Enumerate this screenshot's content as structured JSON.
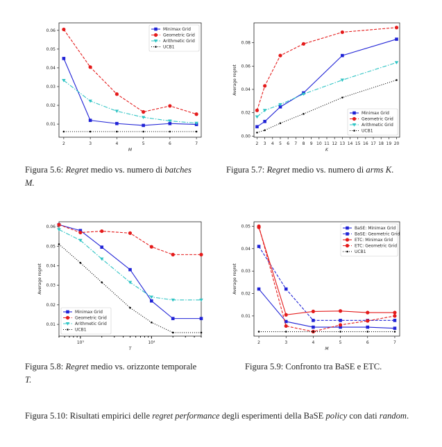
{
  "colors": {
    "minimax": "#1f22d6",
    "geometric": "#e41a1a",
    "arithmetic": "#2ec4c4",
    "ucb1": "#000000"
  },
  "chart_data": [
    {
      "type": "line",
      "xlabel": "M",
      "ylabel": "",
      "x": [
        2,
        3,
        4,
        5,
        6,
        7
      ],
      "xticks": [
        "2",
        "3",
        "4",
        "5",
        "6",
        "7"
      ],
      "yticks": [
        "0.01",
        "0.02",
        "0.03",
        "0.04",
        "0.05",
        "0.06"
      ],
      "ylim": [
        0.003,
        0.064
      ],
      "xlim": [
        1.82,
        7.18
      ],
      "legend_position": "top-right",
      "series": [
        {
          "name": "Minimax Grid",
          "style": "minimax",
          "values": [
            0.045,
            0.012,
            0.0103,
            0.0093,
            0.0103,
            0.0098
          ]
        },
        {
          "name": "Geometric Grid",
          "style": "geometric",
          "values": [
            0.0605,
            0.0404,
            0.026,
            0.0165,
            0.0197,
            0.0153
          ]
        },
        {
          "name": "Arithmetic Grid",
          "style": "arithmetic",
          "values": [
            0.0333,
            0.0223,
            0.0169,
            0.0136,
            0.0117,
            0.0105
          ]
        },
        {
          "name": "UCB1",
          "style": "ucb1",
          "values": [
            0.006,
            0.006,
            0.006,
            0.006,
            0.006,
            0.006
          ]
        }
      ]
    },
    {
      "type": "line",
      "xlabel": "K",
      "ylabel": "Average regret",
      "x": [
        2,
        3,
        5,
        8,
        13,
        20
      ],
      "xticks": [
        "2",
        "3",
        "4",
        "5",
        "6",
        "7",
        "8",
        "9",
        "10",
        "11",
        "12",
        "13",
        "14",
        "15",
        "16",
        "17",
        "18",
        "19",
        "20"
      ],
      "xtick_values": [
        2,
        3,
        4,
        5,
        6,
        7,
        8,
        9,
        10,
        11,
        12,
        13,
        14,
        15,
        16,
        17,
        18,
        19,
        20
      ],
      "yticks": [
        "0.00",
        "0.02",
        "0.04",
        "0.06",
        "0.08"
      ],
      "ytick_values": [
        0,
        0.02,
        0.04,
        0.06,
        0.08
      ],
      "ylim": [
        -0.001,
        0.097
      ],
      "xlim": [
        1.6,
        20.4
      ],
      "legend_position": "lower-right",
      "series": [
        {
          "name": "Minimax Grid",
          "style": "minimax",
          "values": [
            0.008,
            0.0125,
            0.025,
            0.037,
            0.069,
            0.083
          ]
        },
        {
          "name": "Geometric Grid",
          "style": "geometric",
          "values": [
            0.022,
            0.043,
            0.069,
            0.079,
            0.089,
            0.093
          ]
        },
        {
          "name": "Arithmetic Grid",
          "style": "arithmetic",
          "values": [
            0.0165,
            0.022,
            0.027,
            0.036,
            0.048,
            0.063
          ]
        },
        {
          "name": "UCB1",
          "style": "ucb1",
          "values": [
            0.003,
            0.005,
            0.011,
            0.019,
            0.033,
            0.048
          ]
        }
      ]
    },
    {
      "type": "line",
      "xscale": "log",
      "xlabel": "T",
      "ylabel": "Average regret",
      "x": [
        5000,
        10000,
        20000,
        50000,
        100000,
        200000,
        500000
      ],
      "xticks": [
        "10³",
        "10⁴"
      ],
      "ylim": [
        0.004,
        0.0625
      ],
      "xlim": [
        5000,
        500000
      ],
      "yticks": [
        "0.01",
        "0.02",
        "0.03",
        "0.04",
        "0.05",
        "0.06"
      ],
      "legend_position": "lower-left",
      "series": [
        {
          "name": "Minimax Grid",
          "style": "minimax",
          "values": [
            0.061,
            0.058,
            0.0495,
            0.038,
            0.022,
            0.013,
            0.013
          ]
        },
        {
          "name": "Geometric Grid",
          "style": "geometric",
          "values": [
            0.061,
            0.057,
            0.0577,
            0.0567,
            0.0497,
            0.0457,
            0.0457
          ]
        },
        {
          "name": "Arithmetic Grid",
          "style": "arithmetic",
          "values": [
            0.0585,
            0.053,
            0.0435,
            0.0315,
            0.024,
            0.0225,
            0.0225
          ]
        },
        {
          "name": "UCB1",
          "style": "ucb1",
          "values": [
            0.051,
            0.0415,
            0.0315,
            0.0185,
            0.011,
            0.0058,
            0.0058
          ]
        }
      ]
    },
    {
      "type": "line",
      "xlabel": "M",
      "ylabel": "Average regret",
      "x": [
        2,
        3,
        4,
        5,
        6,
        7
      ],
      "xticks": [
        "2",
        "3",
        "4",
        "5",
        "6",
        "7"
      ],
      "yticks": [
        "0.01",
        "0.02",
        "0.03",
        "0.04",
        "0.05"
      ],
      "ylim": [
        0.001,
        0.052
      ],
      "xlim": [
        1.82,
        7.18
      ],
      "legend_position": "top-right",
      "series": [
        {
          "name": "BaSE: Minimax Grid",
          "style": "minimax",
          "values": [
            0.022,
            0.0075,
            0.005,
            0.005,
            0.005,
            0.0045
          ]
        },
        {
          "name": "BaSE: Geometric Grid",
          "style": "minimax-dashed",
          "values": [
            0.041,
            0.022,
            0.008,
            0.008,
            0.008,
            0.008
          ]
        },
        {
          "name": "ETC: Minimax Grid",
          "style": "geometric-solid",
          "values": [
            0.0495,
            0.0105,
            0.012,
            0.0122,
            0.0115,
            0.0115
          ]
        },
        {
          "name": "ETC: Geometric Grid",
          "style": "geometric",
          "values": [
            0.05,
            0.0055,
            0.003,
            0.006,
            0.0078,
            0.01
          ]
        },
        {
          "name": "UCB1",
          "style": "ucb1",
          "values": [
            0.003,
            0.003,
            0.003,
            0.003,
            0.003,
            0.003
          ]
        }
      ]
    }
  ],
  "captions": {
    "fig56": {
      "label": "Figura 5.6:",
      "italic1": "Regret",
      "text1": " medio vs.  numero di ",
      "italic2": "batches",
      "text2": "",
      "line2": "M."
    },
    "fig57": {
      "label": "Figura 5.7:",
      "italic1": "Regret",
      "text1": " medio vs. numero di ",
      "italic2": "arms K",
      "text2": "."
    },
    "fig58": {
      "label": "Figura 5.8:",
      "italic1": "Regret",
      "text1": " medio vs. orizzonte temporale",
      "line2": "T."
    },
    "fig59": {
      "label": "Figura 5.9:",
      "text1": " Confronto tra BaSE e ETC."
    },
    "fig510": {
      "label": "Figura 5.10:",
      "text1": " Risultati empirici delle ",
      "italic1": "regret performance",
      "text2": " degli esperimenti della BaSE ",
      "italic2": "policy",
      "text3": " con dati ",
      "italic3": "random",
      "text4": "."
    }
  }
}
